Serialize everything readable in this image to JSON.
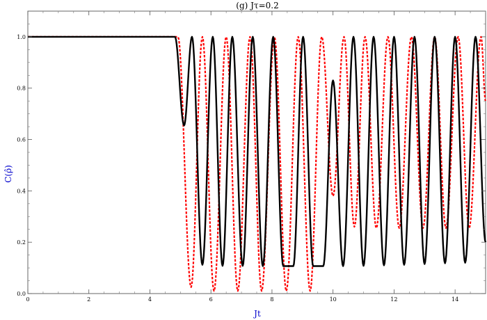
{
  "chart_data": {
    "type": "line",
    "title": "(g) Jτ=0.2",
    "xlabel": "Jt",
    "ylabel": "C(ρ̂)",
    "xlim": [
      0,
      15
    ],
    "ylim": [
      0,
      1.1
    ],
    "xticks": [
      0,
      2,
      4,
      6,
      8,
      10,
      12,
      14
    ],
    "xtick_labels": [
      "0",
      "2",
      "4",
      "6",
      "8",
      "10",
      "12",
      "14"
    ],
    "yticks": [
      0.0,
      0.2,
      0.4,
      0.6,
      0.8,
      1.0
    ],
    "ytick_labels": [
      "0.0",
      "0.2",
      "0.4",
      "0.6",
      "0.8",
      "1.0"
    ],
    "grid": false,
    "label_color": "#0000cc",
    "series": [
      {
        "style": "solid",
        "color": "#000000",
        "plateau": {
          "x": [
            0,
            4.82
          ],
          "y": 1.0
        },
        "points": [
          [
            4.82,
            1.0
          ],
          [
            5.12,
            0.655
          ],
          [
            5.38,
            1.0
          ],
          [
            5.72,
            0.112
          ],
          [
            6.06,
            1.0
          ],
          [
            6.38,
            0.108
          ],
          [
            6.7,
            1.0
          ],
          [
            7.04,
            0.108
          ],
          [
            7.37,
            1.0
          ],
          [
            7.7,
            0.107
          ],
          [
            8.04,
            1.0
          ],
          [
            8.37,
            0.107
          ],
          [
            8.7,
            0.107
          ],
          [
            9.02,
            1.0
          ],
          [
            9.35,
            0.107
          ],
          [
            9.68,
            0.107
          ],
          [
            10.0,
            0.83
          ],
          [
            10.33,
            0.107
          ],
          [
            10.67,
            1.0
          ],
          [
            11.0,
            0.108
          ],
          [
            11.33,
            1.0
          ],
          [
            11.67,
            0.11
          ],
          [
            12.0,
            1.0
          ],
          [
            12.33,
            0.112
          ],
          [
            12.67,
            1.0
          ],
          [
            13.0,
            0.115
          ],
          [
            13.33,
            1.0
          ],
          [
            13.67,
            0.118
          ],
          [
            14.0,
            1.0
          ],
          [
            14.33,
            0.12
          ],
          [
            14.67,
            1.0
          ],
          [
            15.0,
            0.2
          ]
        ]
      },
      {
        "style": "dashed",
        "color": "#ff0000",
        "plateau": {
          "x": [
            0,
            4.92
          ],
          "y": 1.0
        },
        "points": [
          [
            4.92,
            1.0
          ],
          [
            5.35,
            0.025
          ],
          [
            5.72,
            1.0
          ],
          [
            6.1,
            0.01
          ],
          [
            6.5,
            1.0
          ],
          [
            6.88,
            0.01
          ],
          [
            7.28,
            1.0
          ],
          [
            7.66,
            0.01
          ],
          [
            8.08,
            1.0
          ],
          [
            8.47,
            0.01
          ],
          [
            8.86,
            1.0
          ],
          [
            9.25,
            0.01
          ],
          [
            9.63,
            1.0
          ],
          [
            10.0,
            0.38
          ],
          [
            10.36,
            1.0
          ],
          [
            10.7,
            0.26
          ],
          [
            11.05,
            1.0
          ],
          [
            11.42,
            0.255
          ],
          [
            11.8,
            1.0
          ],
          [
            12.17,
            0.255
          ],
          [
            12.57,
            1.0
          ],
          [
            12.95,
            0.255
          ],
          [
            13.33,
            1.0
          ],
          [
            13.7,
            0.255
          ],
          [
            14.1,
            1.0
          ],
          [
            14.46,
            0.255
          ],
          [
            14.85,
            1.0
          ],
          [
            15.0,
            0.75
          ]
        ]
      }
    ]
  }
}
